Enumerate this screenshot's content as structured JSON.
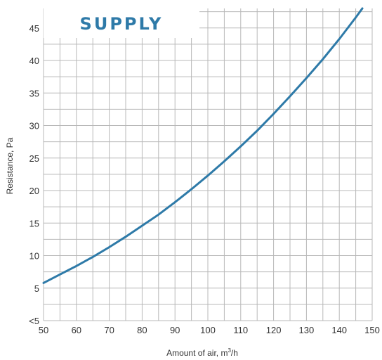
{
  "chart_data": {
    "type": "line",
    "title": "SUPPLY",
    "xlabel": "Amount of air, m",
    "xlabel_sup": "3",
    "xlabel_suffix": "/h",
    "ylabel": "Resistance, Pa",
    "xlim": [
      50,
      150
    ],
    "ylim": [
      0,
      48
    ],
    "x_ticks": [
      50,
      60,
      70,
      80,
      90,
      100,
      110,
      120,
      130,
      140,
      150
    ],
    "y_ticks": [
      {
        "value": 0,
        "label": "<5"
      },
      {
        "value": 5,
        "label": "5"
      },
      {
        "value": 10,
        "label": "10"
      },
      {
        "value": 15,
        "label": "15"
      },
      {
        "value": 20,
        "label": "20"
      },
      {
        "value": 25,
        "label": "25"
      },
      {
        "value": 30,
        "label": "30"
      },
      {
        "value": 35,
        "label": "35"
      },
      {
        "value": 40,
        "label": "40"
      },
      {
        "value": 45,
        "label": "45"
      }
    ],
    "grid": true,
    "series": [
      {
        "color": "#2e7aa8",
        "x": [
          50,
          55,
          60,
          65,
          70,
          75,
          80,
          85,
          90,
          95,
          100,
          105,
          110,
          115,
          120,
          125,
          130,
          135,
          140,
          145,
          147
        ],
        "y": [
          5.8,
          7.1,
          8.4,
          9.8,
          11.3,
          12.9,
          14.6,
          16.3,
          18.2,
          20.2,
          22.3,
          24.5,
          26.8,
          29.2,
          31.8,
          34.5,
          37.3,
          40.2,
          43.3,
          46.6,
          48
        ]
      }
    ]
  }
}
